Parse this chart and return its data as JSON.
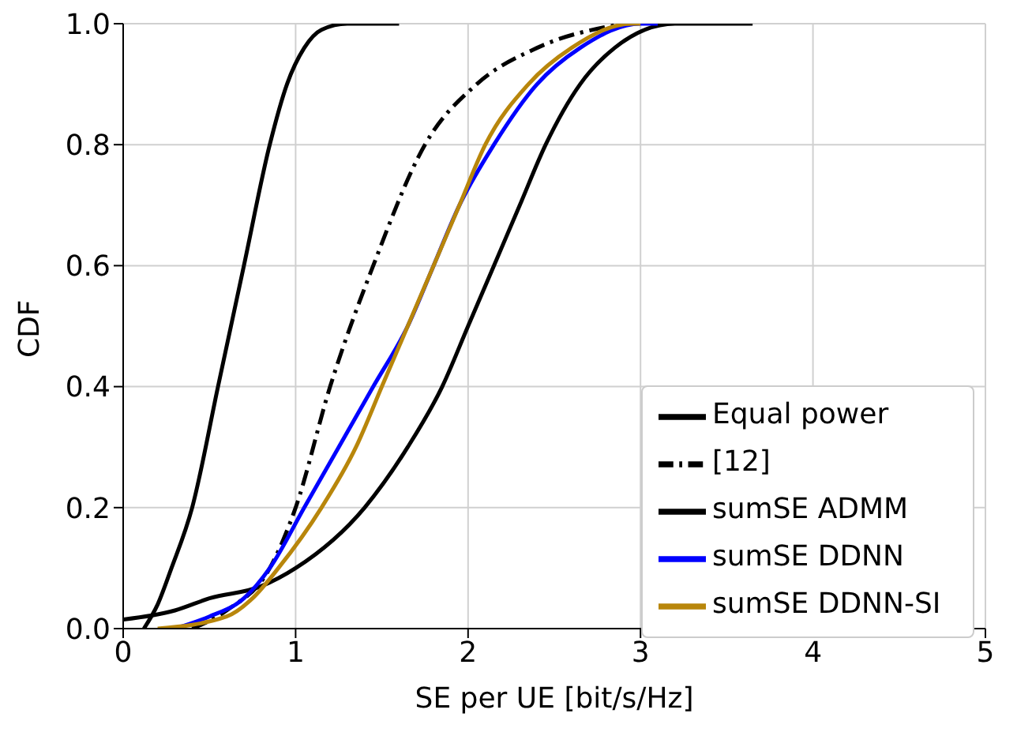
{
  "chart_data": {
    "type": "line",
    "xlabel": "SE per UE [bit/s/Hz]",
    "ylabel": "CDF",
    "xlim": [
      0,
      5
    ],
    "xticks": [
      0,
      1,
      2,
      3,
      4,
      5
    ],
    "ylim": [
      0,
      1
    ],
    "yticks": [
      {
        "value": 0,
        "label": "0.0"
      },
      0.2,
      0.4,
      0.6,
      0.8,
      {
        "value": 1,
        "label": "1.0"
      }
    ],
    "grid": true,
    "legend": "bottom right",
    "series": [
      {
        "name": "Equal power",
        "color": "#000000",
        "line_style": "solid",
        "x": [
          0.12,
          0.2,
          0.28,
          0.4,
          0.55,
          0.7,
          0.85,
          0.95,
          1.05,
          1.15,
          1.3,
          1.6
        ],
        "values": [
          0,
          0.04,
          0.1,
          0.2,
          0.4,
          0.6,
          0.8,
          0.9,
          0.96,
          0.99,
          1,
          1
        ]
      },
      {
        "name": "[12]",
        "color": "#000000",
        "line_style": "dashed",
        "x": [
          0.4,
          0.6,
          0.85,
          1.0,
          1.2,
          1.45,
          1.75,
          2.05,
          2.4,
          2.9
        ],
        "values": [
          0,
          0.03,
          0.1,
          0.2,
          0.4,
          0.6,
          0.8,
          0.9,
          0.96,
          1
        ]
      },
      {
        "name": "sumSE ADMM",
        "color": "#000000",
        "line_style": "solid",
        "x": [
          0,
          0.3,
          0.5,
          0.8,
          1.0,
          1.4,
          1.65,
          1.85,
          2.0,
          2.15,
          2.3,
          2.45,
          2.65,
          2.85,
          3.2,
          3.65
        ],
        "values": [
          0.015,
          0.03,
          0.05,
          0.07,
          0.1,
          0.2,
          0.3,
          0.4,
          0.5,
          0.6,
          0.7,
          0.8,
          0.9,
          0.96,
          1,
          1
        ]
      },
      {
        "name": "sumSE DDNN",
        "color": "#0000ff",
        "line_style": "solid",
        "x": [
          0.3,
          0.5,
          0.7,
          0.85,
          1.05,
          1.25,
          1.45,
          1.65,
          1.8,
          1.95,
          2.15,
          2.4,
          2.65,
          3.0,
          3.1
        ],
        "values": [
          0,
          0.02,
          0.05,
          0.1,
          0.2,
          0.3,
          0.4,
          0.5,
          0.6,
          0.7,
          0.8,
          0.9,
          0.96,
          1,
          1
        ]
      },
      {
        "name": "sumSE DDNN-SI",
        "color": "#b8860b",
        "line_style": "solid",
        "x": [
          0.2,
          0.6,
          0.75,
          0.9,
          1.15,
          1.35,
          1.5,
          1.65,
          1.8,
          1.95,
          2.1,
          2.35,
          2.6,
          2.95,
          3.0
        ],
        "values": [
          0,
          0.02,
          0.05,
          0.1,
          0.2,
          0.3,
          0.4,
          0.5,
          0.6,
          0.7,
          0.8,
          0.9,
          0.96,
          1,
          1
        ]
      }
    ]
  }
}
